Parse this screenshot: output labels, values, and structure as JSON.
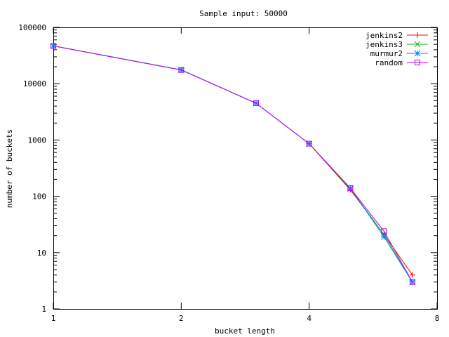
{
  "chart_data": {
    "type": "line",
    "title": "Sample input: 50000",
    "xlabel": "bucket length",
    "ylabel": "number of buckets",
    "xscale": "log2",
    "yscale": "log10",
    "xlim": [
      1,
      8
    ],
    "ylim": [
      1,
      100000
    ],
    "x_ticks": [
      "1",
      "2",
      "4",
      "8"
    ],
    "y_ticks": [
      "1",
      "10",
      "100",
      "1000",
      "10000",
      "100000"
    ],
    "legend_position": "top-right",
    "grid": false,
    "x": [
      1,
      2,
      3,
      4,
      5,
      6,
      7
    ],
    "series": [
      {
        "name": "jenkins2",
        "color": "#ff0000",
        "marker": "plus",
        "values": [
          46800,
          17600,
          4500,
          860,
          130,
          21,
          4
        ]
      },
      {
        "name": "jenkins3",
        "color": "#00c000",
        "marker": "cross",
        "values": [
          46800,
          17600,
          4500,
          860,
          135,
          21,
          3
        ]
      },
      {
        "name": "murmur2",
        "color": "#0080ff",
        "marker": "star",
        "values": [
          46800,
          17600,
          4500,
          860,
          140,
          19,
          3
        ]
      },
      {
        "name": "random",
        "color": "#c000ff",
        "marker": "square",
        "values": [
          46800,
          17500,
          4500,
          860,
          140,
          24,
          3
        ]
      }
    ]
  }
}
